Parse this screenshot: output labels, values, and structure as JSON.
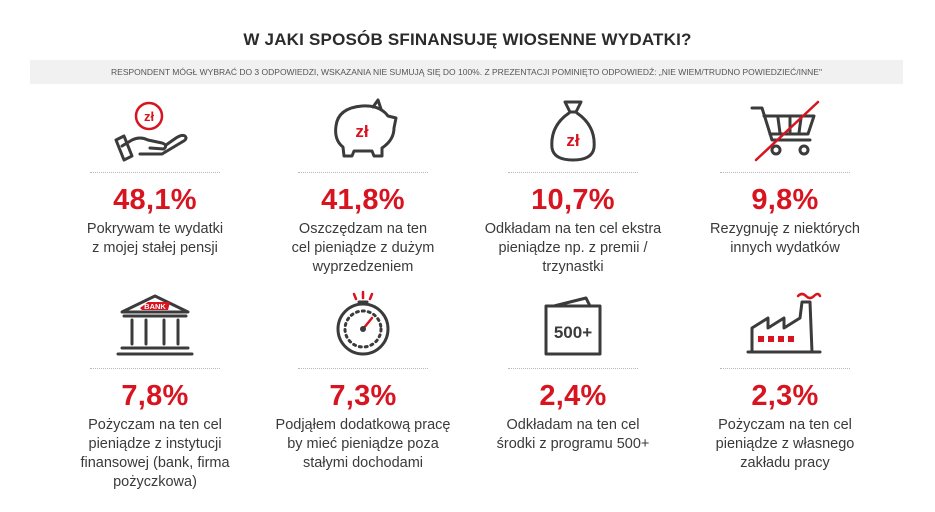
{
  "header": {
    "title": "W JAKI SPOSÓB SFINANSUJĘ WIOSENNE WYDATKI?",
    "subtitle": "RESPONDENT MÓGŁ WYBRAĆ DO 3 ODPOWIEDZI, WSKAZANIA NIE SUMUJĄ SIĘ DO 100%. Z PREZENTACJI POMINIĘTO ODPOWIEDŹ: „NIE WIEM/TRUDNO POWIEDZIEĆ/INNE\""
  },
  "icons": {
    "currency_label": "zł",
    "bank_label": "BANK",
    "benefit_label": "500+"
  },
  "colors": {
    "accent": "#d7141f",
    "text": "#3a3a3a",
    "icon": "#3b3b3b"
  },
  "chart_data": {
    "type": "table",
    "unit": "%",
    "items": [
      {
        "icon": "hand-coin-icon",
        "value": 48.1,
        "value_label": "48,1%",
        "desc": [
          "Pokrywam te wydatki",
          "z mojej stałej pensji"
        ]
      },
      {
        "icon": "piggy-bank-icon",
        "value": 41.8,
        "value_label": "41,8%",
        "desc": [
          "Oszczędzam na ten",
          "cel pieniądze z dużym",
          "wyprzedzeniem"
        ]
      },
      {
        "icon": "money-bag-icon",
        "value": 10.7,
        "value_label": "10,7%",
        "desc": [
          "Odkładam na ten cel ekstra",
          "pieniądze np. z premii /",
          "trzynastki"
        ]
      },
      {
        "icon": "crossed-cart-icon",
        "value": 9.8,
        "value_label": "9,8%",
        "desc": [
          "Rezygnuję z niektórych",
          "innych wydatków"
        ]
      },
      {
        "icon": "bank-building-icon",
        "value": 7.8,
        "value_label": "7,8%",
        "desc": [
          "Pożyczam na ten cel",
          "pieniądze z instytucji",
          "finansowej (bank, firma",
          "pożyczkowa)"
        ]
      },
      {
        "icon": "stopwatch-icon",
        "value": 7.3,
        "value_label": "7,3%",
        "desc": [
          "Podjąłem dodatkową pracę",
          "by mieć pieniądze poza",
          "stałymi dochodami"
        ]
      },
      {
        "icon": "wallet-500-icon",
        "value": 2.4,
        "value_label": "2,4%",
        "desc": [
          "Odkładam na ten cel",
          "środki z programu 500+"
        ]
      },
      {
        "icon": "factory-icon",
        "value": 2.3,
        "value_label": "2,3%",
        "desc": [
          "Pożyczam na ten cel",
          "pieniądze z własnego",
          "zakładu pracy"
        ]
      }
    ]
  }
}
